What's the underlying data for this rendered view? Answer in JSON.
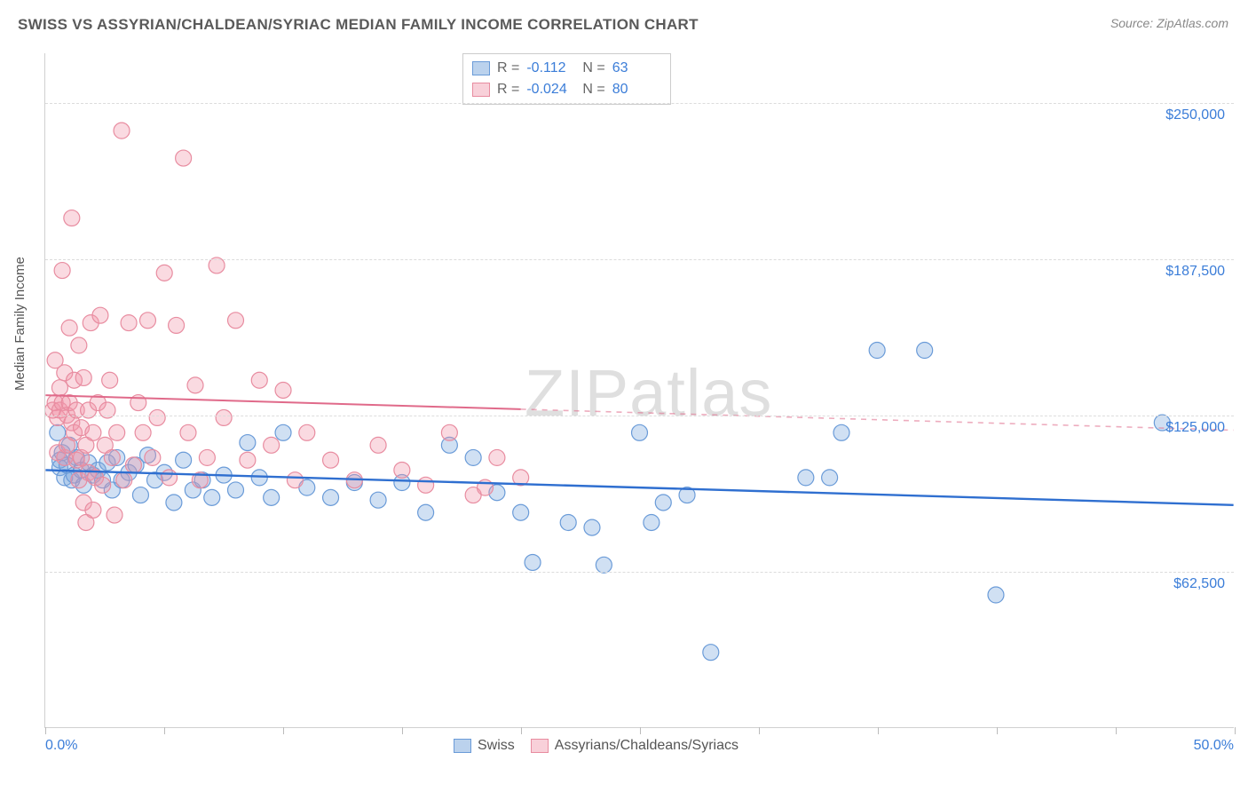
{
  "title": "SWISS VS ASSYRIAN/CHALDEAN/SYRIAC MEDIAN FAMILY INCOME CORRELATION CHART",
  "source": "Source: ZipAtlas.com",
  "watermark": "ZIPatlas",
  "y_axis_label": "Median Family Income",
  "chart": {
    "type": "scatter",
    "background_color": "#ffffff",
    "grid_color": "#dcdcdc",
    "axis_color": "#d0d0d0",
    "xlim": [
      0,
      50
    ],
    "ylim": [
      0,
      270000
    ],
    "x_ticks": [
      0,
      5,
      10,
      15,
      20,
      25,
      30,
      35,
      40,
      45,
      50
    ],
    "x_min_label": "0.0%",
    "x_max_label": "50.0%",
    "y_gridlines": [
      {
        "value": 62500,
        "label": "$62,500"
      },
      {
        "value": 125000,
        "label": "$125,000"
      },
      {
        "value": 187500,
        "label": "$187,500"
      },
      {
        "value": 250000,
        "label": "$250,000"
      }
    ],
    "marker_radius": 9,
    "marker_stroke_width": 1.2,
    "series": [
      {
        "name": "Swiss",
        "fill": "rgba(120,165,220,0.35)",
        "stroke": "#6a9bd8",
        "R": "-0.112",
        "N": "63",
        "trend": {
          "x1": 0,
          "y1": 103000,
          "x2": 50,
          "y2": 89000,
          "stroke": "#2f6fd0",
          "width": 2.4,
          "solid_until_x": 50
        },
        "points": [
          [
            0.5,
            118000
          ],
          [
            0.6,
            107000
          ],
          [
            0.6,
            104000
          ],
          [
            0.7,
            110000
          ],
          [
            0.8,
            100000
          ],
          [
            0.9,
            105000
          ],
          [
            1.0,
            113000
          ],
          [
            1.1,
            99000
          ],
          [
            1.2,
            101000
          ],
          [
            1.3,
            108000
          ],
          [
            1.5,
            103000
          ],
          [
            1.6,
            97000
          ],
          [
            1.8,
            106000
          ],
          [
            2.0,
            101000
          ],
          [
            2.2,
            103000
          ],
          [
            2.4,
            99000
          ],
          [
            2.6,
            106000
          ],
          [
            2.8,
            95000
          ],
          [
            3.0,
            108000
          ],
          [
            3.2,
            99000
          ],
          [
            3.5,
            102000
          ],
          [
            3.8,
            105000
          ],
          [
            4.0,
            93000
          ],
          [
            4.3,
            109000
          ],
          [
            4.6,
            99000
          ],
          [
            5.0,
            102000
          ],
          [
            5.4,
            90000
          ],
          [
            5.8,
            107000
          ],
          [
            6.2,
            95000
          ],
          [
            6.6,
            99000
          ],
          [
            7.0,
            92000
          ],
          [
            7.5,
            101000
          ],
          [
            8.0,
            95000
          ],
          [
            8.5,
            114000
          ],
          [
            9.0,
            100000
          ],
          [
            9.5,
            92000
          ],
          [
            10.0,
            118000
          ],
          [
            11.0,
            96000
          ],
          [
            12.0,
            92000
          ],
          [
            13.0,
            98000
          ],
          [
            14.0,
            91000
          ],
          [
            15.0,
            98000
          ],
          [
            16.0,
            86000
          ],
          [
            17.0,
            113000
          ],
          [
            18.0,
            108000
          ],
          [
            19.0,
            94000
          ],
          [
            20.0,
            86000
          ],
          [
            20.5,
            66000
          ],
          [
            22.0,
            82000
          ],
          [
            23.0,
            80000
          ],
          [
            23.5,
            65000
          ],
          [
            25.0,
            118000
          ],
          [
            25.5,
            82000
          ],
          [
            26.0,
            90000
          ],
          [
            27.0,
            93000
          ],
          [
            28.0,
            30000
          ],
          [
            32.0,
            100000
          ],
          [
            33.0,
            100000
          ],
          [
            33.5,
            118000
          ],
          [
            35.0,
            151000
          ],
          [
            37.0,
            151000
          ],
          [
            40.0,
            53000
          ],
          [
            47.0,
            122000
          ]
        ]
      },
      {
        "name": "Assyrians/Chaldeans/Syriacs",
        "fill": "rgba(240,150,170,0.35)",
        "stroke": "#e88ca0",
        "R": "-0.024",
        "N": "80",
        "trend": {
          "x1": 0,
          "y1": 133000,
          "x2": 50,
          "y2": 119000,
          "stroke": "#e06a8a",
          "width": 2,
          "solid_until_x": 20
        },
        "points": [
          [
            0.3,
            127000
          ],
          [
            0.4,
            130000
          ],
          [
            0.4,
            147000
          ],
          [
            0.5,
            124000
          ],
          [
            0.5,
            110000
          ],
          [
            0.6,
            127000
          ],
          [
            0.6,
            136000
          ],
          [
            0.7,
            183000
          ],
          [
            0.7,
            130000
          ],
          [
            0.8,
            108000
          ],
          [
            0.8,
            142000
          ],
          [
            0.9,
            125000
          ],
          [
            0.9,
            113000
          ],
          [
            1.0,
            130000
          ],
          [
            1.0,
            160000
          ],
          [
            1.1,
            204000
          ],
          [
            1.1,
            122000
          ],
          [
            1.2,
            118000
          ],
          [
            1.2,
            139000
          ],
          [
            1.3,
            107000
          ],
          [
            1.3,
            127000
          ],
          [
            1.4,
            153000
          ],
          [
            1.4,
            99000
          ],
          [
            1.5,
            120000
          ],
          [
            1.5,
            108000
          ],
          [
            1.6,
            90000
          ],
          [
            1.6,
            140000
          ],
          [
            1.7,
            113000
          ],
          [
            1.7,
            82000
          ],
          [
            1.8,
            127000
          ],
          [
            1.8,
            102000
          ],
          [
            1.9,
            162000
          ],
          [
            2.0,
            118000
          ],
          [
            2.0,
            87000
          ],
          [
            2.1,
            100000
          ],
          [
            2.2,
            130000
          ],
          [
            2.3,
            165000
          ],
          [
            2.4,
            97000
          ],
          [
            2.5,
            113000
          ],
          [
            2.6,
            127000
          ],
          [
            2.7,
            139000
          ],
          [
            2.8,
            108000
          ],
          [
            2.9,
            85000
          ],
          [
            3.0,
            118000
          ],
          [
            3.2,
            239000
          ],
          [
            3.3,
            99000
          ],
          [
            3.5,
            162000
          ],
          [
            3.7,
            105000
          ],
          [
            3.9,
            130000
          ],
          [
            4.1,
            118000
          ],
          [
            4.3,
            163000
          ],
          [
            4.5,
            108000
          ],
          [
            4.7,
            124000
          ],
          [
            5.0,
            182000
          ],
          [
            5.2,
            100000
          ],
          [
            5.5,
            161000
          ],
          [
            5.8,
            228000
          ],
          [
            6.0,
            118000
          ],
          [
            6.3,
            137000
          ],
          [
            6.5,
            99000
          ],
          [
            6.8,
            108000
          ],
          [
            7.2,
            185000
          ],
          [
            7.5,
            124000
          ],
          [
            8.0,
            163000
          ],
          [
            8.5,
            107000
          ],
          [
            9.0,
            139000
          ],
          [
            9.5,
            113000
          ],
          [
            10.0,
            135000
          ],
          [
            10.5,
            99000
          ],
          [
            11.0,
            118000
          ],
          [
            12.0,
            107000
          ],
          [
            13.0,
            99000
          ],
          [
            14.0,
            113000
          ],
          [
            15.0,
            103000
          ],
          [
            16.0,
            97000
          ],
          [
            17.0,
            118000
          ],
          [
            18.0,
            93000
          ],
          [
            18.5,
            96000
          ],
          [
            19.0,
            108000
          ],
          [
            20.0,
            100000
          ]
        ]
      }
    ],
    "legend_labels": {
      "swiss": "Swiss",
      "acs": "Assyrians/Chaldeans/Syriacs"
    },
    "value_label_color": "#3b7dd8",
    "text_color": "#666666"
  }
}
